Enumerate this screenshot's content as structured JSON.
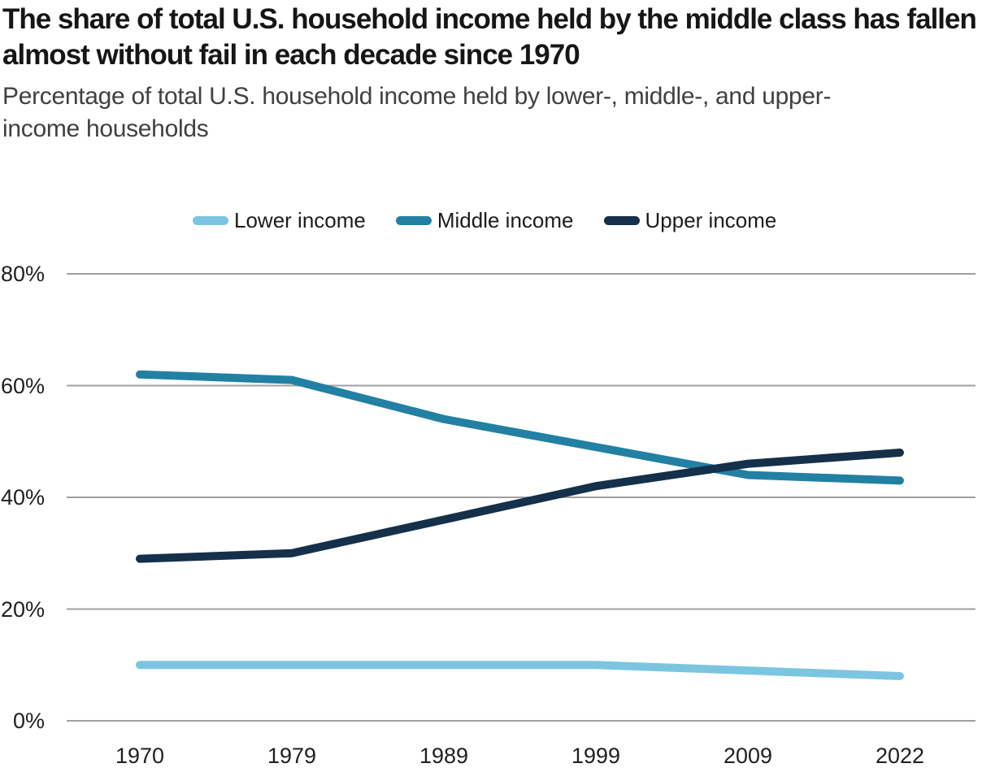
{
  "chart_data": {
    "type": "line",
    "title": "The share of total U.S. household income held by the middle class has fallen almost without fail in each decade since 1970",
    "subtitle": "Percentage of total U.S. household income held by lower-, middle-, and upper-income households",
    "categories": [
      "1970",
      "1979",
      "1989",
      "1999",
      "2009",
      "2022"
    ],
    "series": [
      {
        "name": "Lower income",
        "color": "#7CC5E1",
        "values": [
          10,
          10,
          10,
          10,
          9,
          8
        ]
      },
      {
        "name": "Middle income",
        "color": "#2280A3",
        "values": [
          62,
          61,
          54,
          49,
          44,
          43
        ]
      },
      {
        "name": "Upper income",
        "color": "#15304A",
        "values": [
          29,
          30,
          36,
          42,
          46,
          48
        ]
      }
    ],
    "yticks": {
      "labels": [
        "80%",
        "60%",
        "40%",
        "20%",
        "0%"
      ],
      "values": [
        80,
        60,
        40,
        20,
        0
      ]
    },
    "ylim": [
      0,
      80
    ],
    "xlabel": "",
    "ylabel": "",
    "grid": "horizontal-only",
    "legend_position": "top-center",
    "background_color": "#FFFFFF",
    "gridline_color": "#A0A0A0",
    "axis_text_color": "#1F1F1F",
    "title_color": "#161616",
    "subtitle_color": "#404040"
  }
}
